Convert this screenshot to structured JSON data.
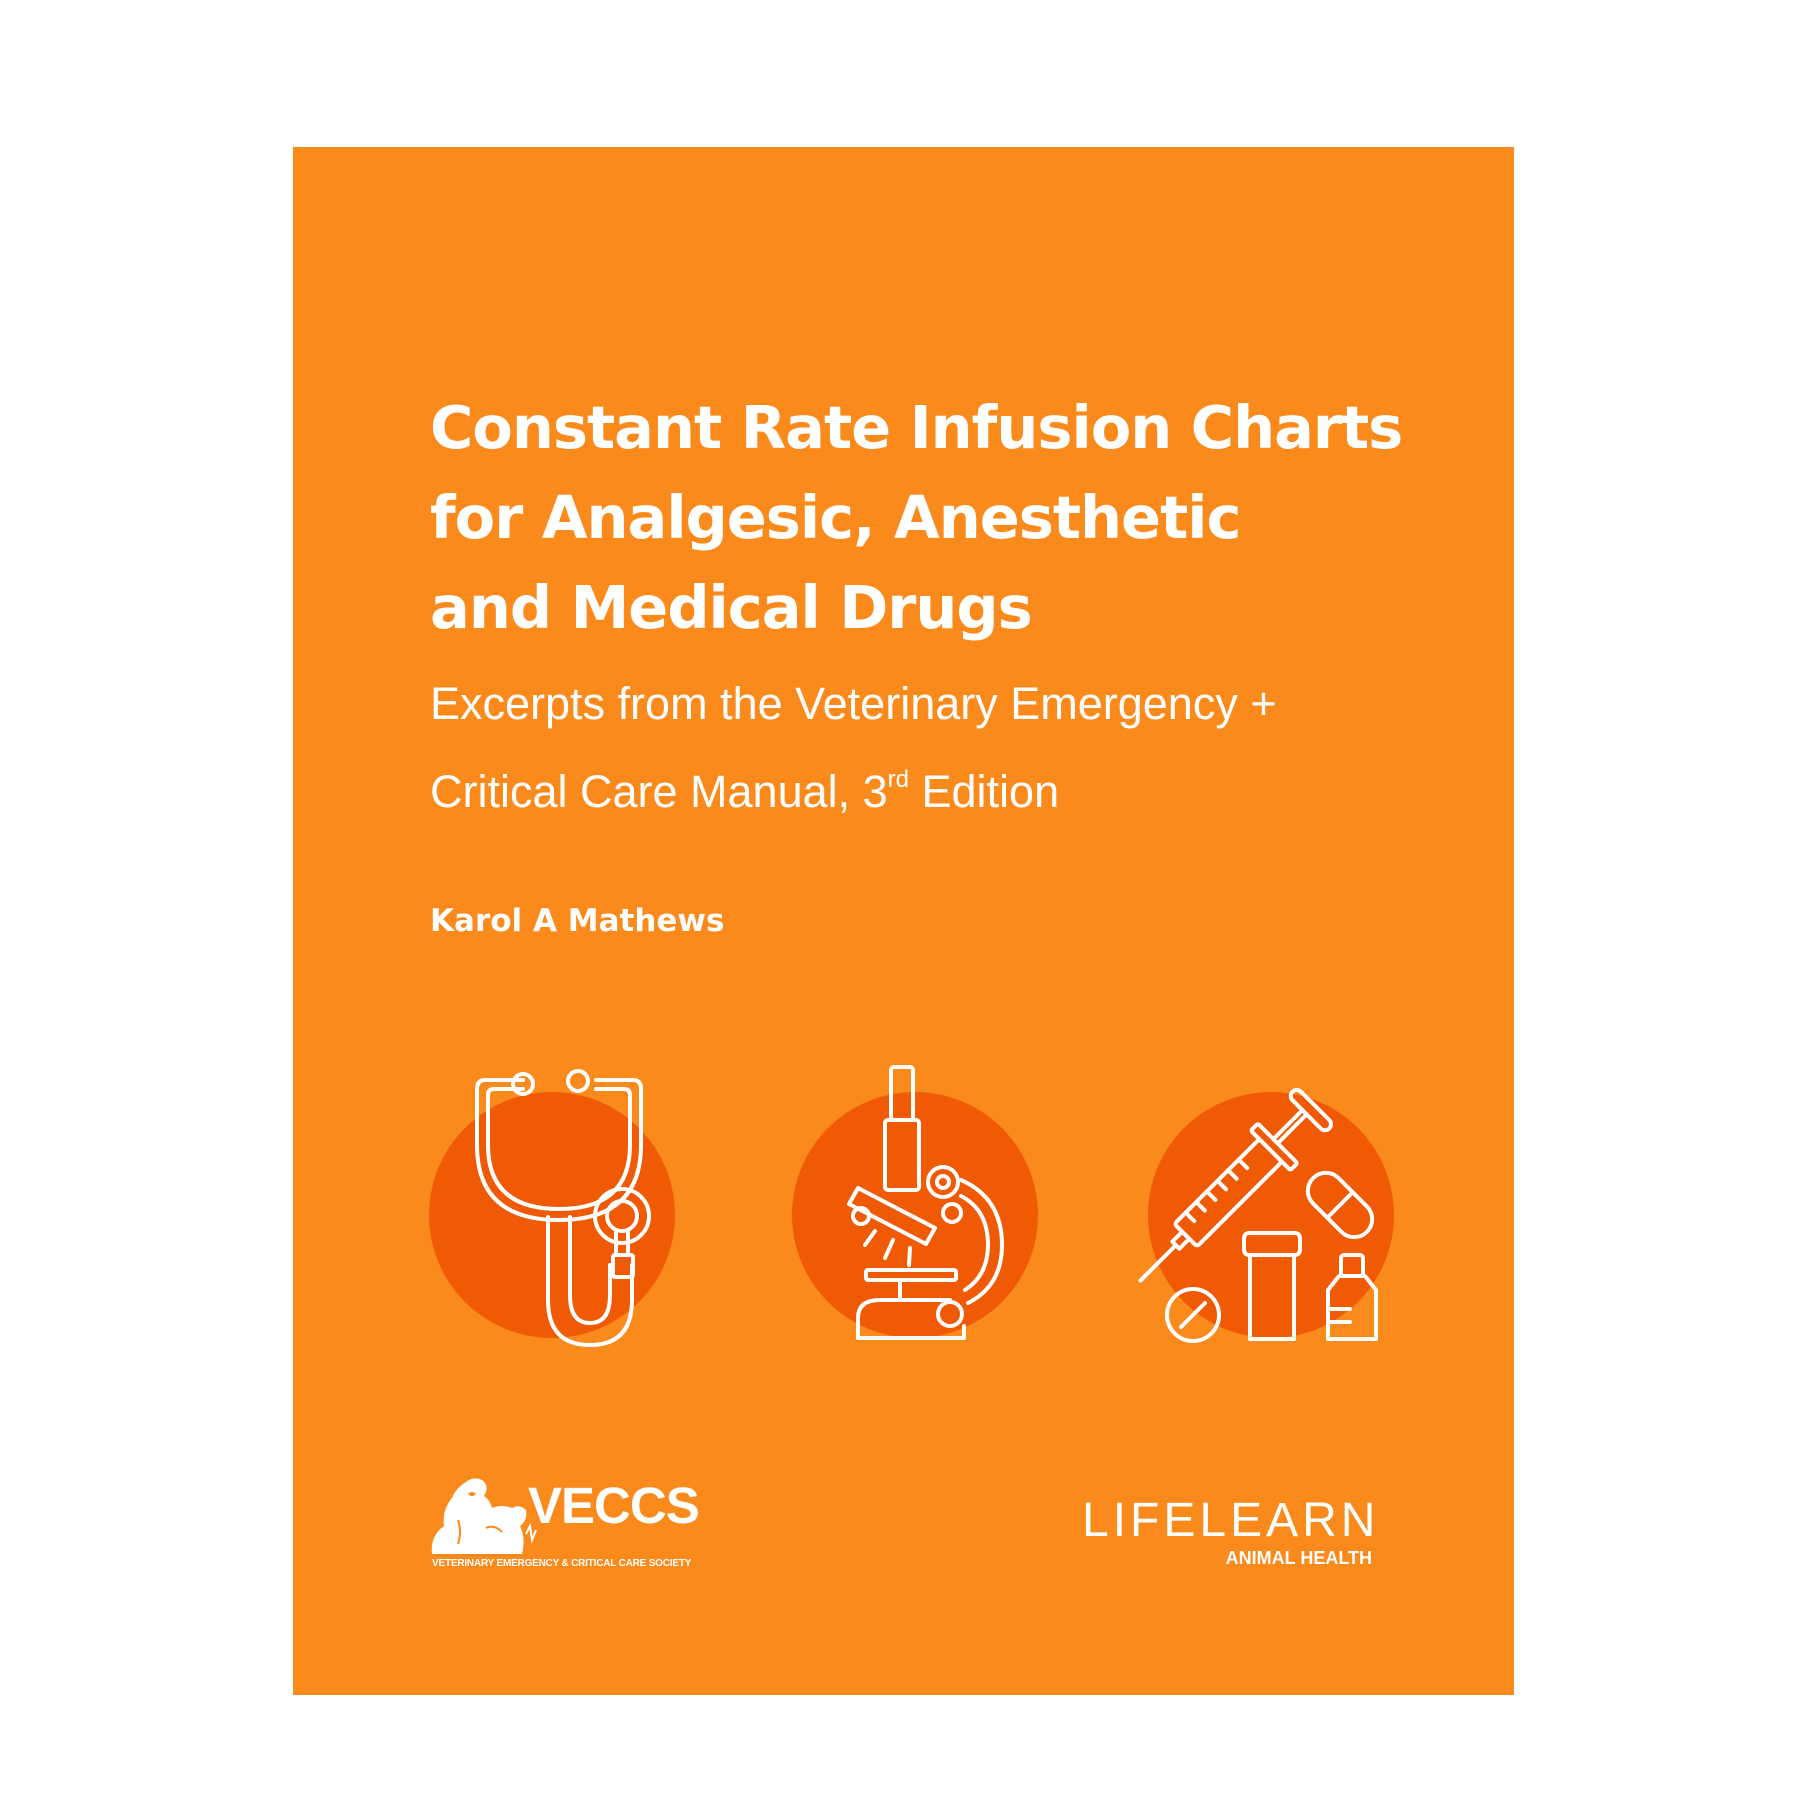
{
  "cover": {
    "background_color": "#fb8a1c",
    "accent_circle_color": "#f05a05",
    "title_lines": [
      "Constant Rate Infusion Charts",
      "for Analgesic, Anesthetic",
      "and Medical Drugs"
    ],
    "subtitle": {
      "line1": "Excerpts from the Veterinary Emergency +",
      "line2_prefix": "Critical Care Manual, 3",
      "line2_superscript": "rd",
      "line2_suffix": " Edition"
    },
    "author": "Karol A Mathews",
    "icons": [
      "stethoscope-icon",
      "microscope-icon",
      "syringe-medication-icon"
    ],
    "logos": {
      "veccs": {
        "wordmark": "VECCS",
        "tagline": "VETERINARY EMERGENCY & CRITICAL CARE SOCIETY"
      },
      "lifelearn": {
        "wordmark": "LIFELEARN",
        "subline": "ANIMAL HEALTH"
      }
    }
  }
}
